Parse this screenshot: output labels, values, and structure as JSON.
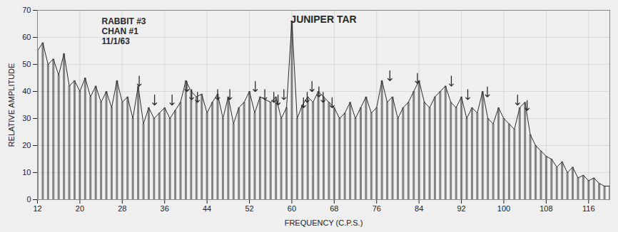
{
  "chart_data": {
    "type": "line",
    "title": "JUNIPER TAR",
    "annotations": [
      "RABBIT #3",
      "CHAN #1",
      "11/1/63"
    ],
    "x_label": "FREQUENCY (C.P.S.)",
    "y_label": "RELATIVE AMPLITUDE",
    "x": [
      12,
      13,
      14,
      15,
      16,
      17,
      18,
      19,
      20,
      21,
      22,
      23,
      24,
      25,
      26,
      27,
      28,
      29,
      30,
      31,
      32,
      33,
      34,
      35,
      36,
      37,
      38,
      39,
      40,
      41,
      42,
      43,
      44,
      45,
      46,
      47,
      48,
      49,
      50,
      51,
      52,
      53,
      54,
      55,
      56,
      57,
      58,
      59,
      60,
      61,
      62,
      63,
      64,
      65,
      66,
      67,
      68,
      69,
      70,
      71,
      72,
      73,
      74,
      75,
      76,
      77,
      78,
      79,
      80,
      81,
      82,
      83,
      84,
      85,
      86,
      87,
      88,
      89,
      90,
      91,
      92,
      93,
      94,
      95,
      96,
      97,
      98,
      99,
      100,
      101,
      102,
      103,
      104,
      105,
      106,
      107,
      108,
      109,
      110,
      111,
      112,
      113,
      114,
      115,
      116,
      117,
      118,
      119,
      120
    ],
    "values": [
      55,
      58,
      50,
      52,
      46,
      54,
      42,
      44,
      40,
      45,
      38,
      42,
      36,
      40,
      34,
      44,
      36,
      38,
      30,
      42,
      28,
      34,
      30,
      32,
      34,
      30,
      33,
      36,
      44,
      40,
      38,
      39,
      32,
      36,
      39,
      30,
      38,
      28,
      34,
      36,
      40,
      32,
      38,
      37,
      36,
      38,
      30,
      34,
      66,
      30,
      35,
      38,
      36,
      40,
      38,
      36,
      34,
      30,
      32,
      36,
      30,
      34,
      38,
      32,
      34,
      44,
      36,
      38,
      30,
      34,
      36,
      40,
      44,
      36,
      34,
      38,
      40,
      42,
      36,
      34,
      38,
      30,
      34,
      32,
      40,
      30,
      28,
      34,
      30,
      28,
      26,
      34,
      36,
      24,
      20,
      18,
      16,
      15,
      12,
      14,
      10,
      12,
      8,
      9,
      7,
      8,
      6,
      5,
      5
    ],
    "color": "#2a2a2a",
    "arrows": {
      "x": [
        31.2,
        34.1,
        37.4,
        40.2,
        41.1,
        42.2,
        46.0,
        48.3,
        53.1,
        54.9,
        56.6,
        57.4,
        58.5,
        62.2,
        62.9,
        63.8,
        65.1,
        65.9,
        67.6,
        78.5,
        83.7,
        90.1,
        93.2,
        96.9,
        102.6,
        104.4
      ],
      "y": [
        42,
        35,
        35,
        40,
        37,
        36,
        37,
        37,
        40,
        37,
        36,
        35,
        37,
        34,
        36,
        40,
        38,
        36,
        34,
        44,
        43,
        42,
        37,
        38,
        35,
        33
      ]
    },
    "xlim": [
      12,
      120
    ],
    "ylim": [
      0,
      70
    ],
    "xticks": [
      12,
      20,
      28,
      36,
      44,
      52,
      60,
      68,
      76,
      84,
      92,
      100,
      108,
      116
    ],
    "yticks": [
      0,
      10,
      20,
      30,
      40,
      50,
      60,
      70
    ],
    "grid": true
  }
}
